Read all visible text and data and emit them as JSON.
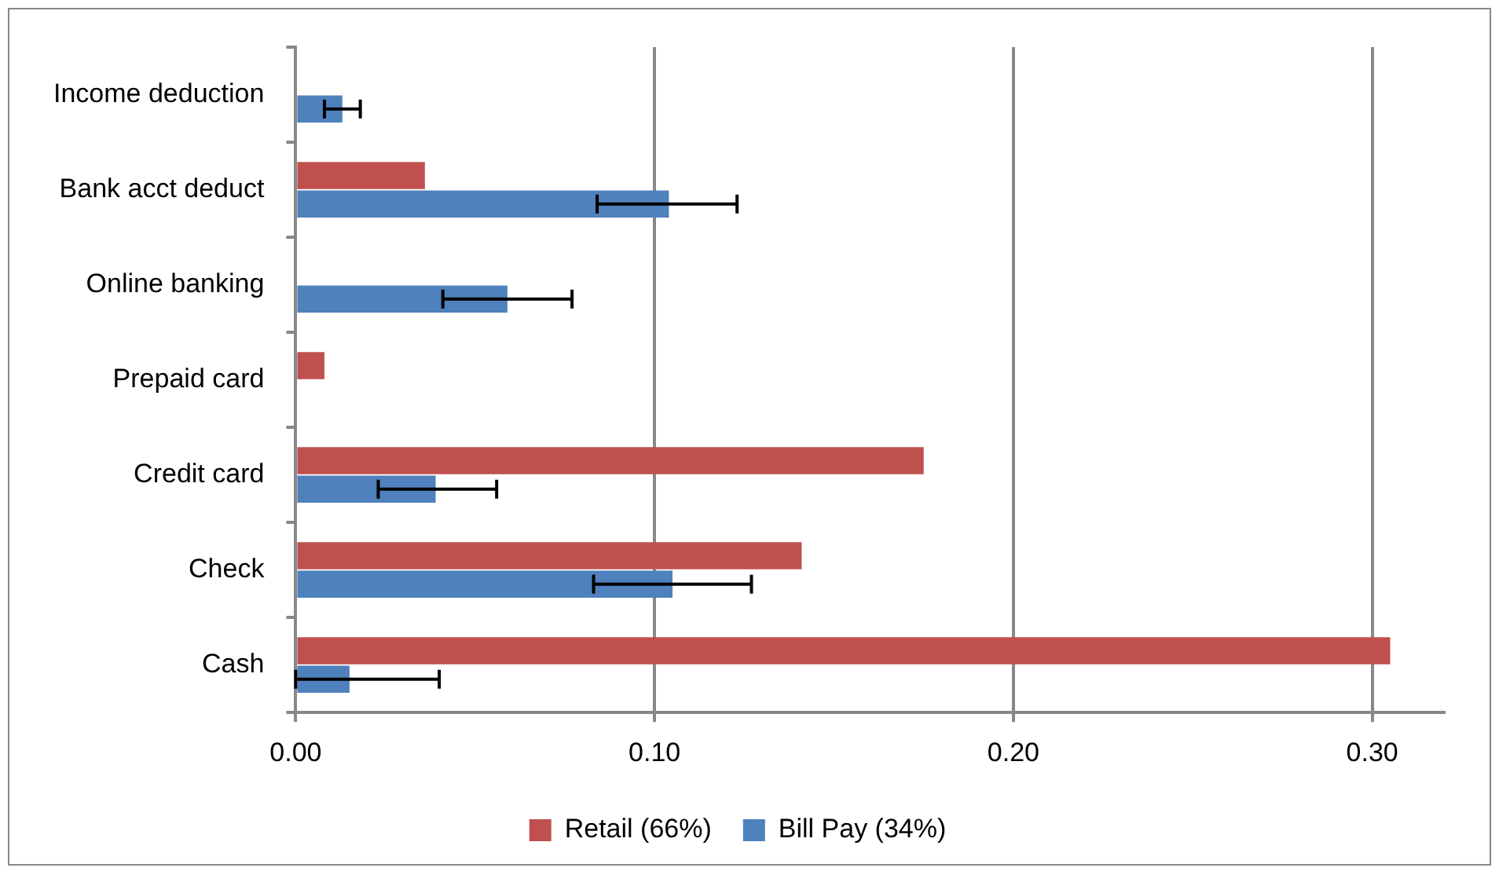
{
  "chart_data": {
    "type": "bar",
    "orientation": "horizontal",
    "categories": [
      "Income deduction",
      "Bank acct deduct",
      "Online banking",
      "Prepaid card",
      "Credit card",
      "Check",
      "Cash"
    ],
    "series": [
      {
        "name": "Retail (66%)",
        "color": "#c0504d",
        "values": [
          null,
          0.036,
          null,
          0.008,
          0.175,
          0.141,
          0.305
        ]
      },
      {
        "name": "Bill Pay (34%)",
        "color": "#4f81bd",
        "values": [
          0.013,
          0.104,
          0.059,
          null,
          0.039,
          0.105,
          0.015
        ],
        "errors": [
          [
            0.008,
            0.018
          ],
          [
            0.084,
            0.123
          ],
          [
            0.041,
            0.077
          ],
          null,
          [
            0.023,
            0.056
          ],
          [
            0.083,
            0.127
          ],
          [
            0,
            0.04
          ]
        ]
      }
    ],
    "xlim": [
      0,
      0.32
    ],
    "xticks": [
      {
        "value": 0,
        "label": "0.00"
      },
      {
        "value": 0.1,
        "label": "0.10"
      },
      {
        "value": 0.2,
        "label": "0.20"
      },
      {
        "value": 0.3,
        "label": "0.30"
      }
    ],
    "grid": "x",
    "legend": "bottom"
  }
}
